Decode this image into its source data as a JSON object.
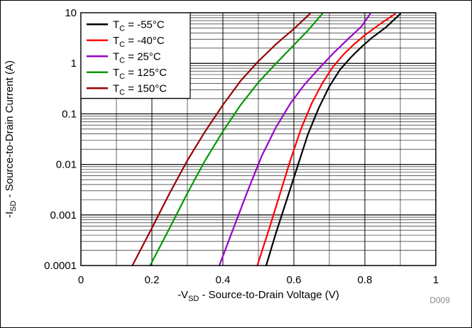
{
  "chart_data": {
    "type": "line",
    "xlabel": {
      "prefix": "-V",
      "sub": "SD",
      "suffix": " - Source-to-Drain Voltage (V)"
    },
    "ylabel": {
      "prefix": "-I",
      "sub": "SD",
      "suffix": " - Source-to-Drain Current (A)"
    },
    "xlim": [
      0,
      1
    ],
    "ylim": [
      0.0001,
      10
    ],
    "yscale": "log",
    "x_ticks": [
      "0",
      "0.2",
      "0.4",
      "0.6",
      "0.8",
      "1"
    ],
    "y_ticks": [
      "0.0001",
      "0.001",
      "0.01",
      "0.1",
      "1",
      "10"
    ],
    "grid": true,
    "legend_position": "top-left",
    "figure_code": "D009",
    "series": [
      {
        "name": "T_C = -55°C",
        "label": {
          "prefix": "T",
          "sub": "C",
          "suffix": " = -55°C"
        },
        "color": "#000000",
        "points": [
          [
            0.522,
            0.0001
          ],
          [
            0.55,
            0.00045
          ],
          [
            0.58,
            0.002
          ],
          [
            0.61,
            0.009
          ],
          [
            0.64,
            0.04
          ],
          [
            0.67,
            0.13
          ],
          [
            0.7,
            0.35
          ],
          [
            0.73,
            0.75
          ],
          [
            0.76,
            1.3
          ],
          [
            0.79,
            2.1
          ],
          [
            0.82,
            3.2
          ],
          [
            0.86,
            5.2
          ],
          [
            0.9,
            9.5
          ]
        ]
      },
      {
        "name": "T_C = -40°C",
        "label": {
          "prefix": "T",
          "sub": "C",
          "suffix": " = -40°C"
        },
        "color": "#ff0000",
        "points": [
          [
            0.497,
            0.0001
          ],
          [
            0.53,
            0.00052
          ],
          [
            0.56,
            0.0025
          ],
          [
            0.59,
            0.012
          ],
          [
            0.62,
            0.05
          ],
          [
            0.65,
            0.16
          ],
          [
            0.68,
            0.4
          ],
          [
            0.71,
            0.85
          ],
          [
            0.74,
            1.5
          ],
          [
            0.77,
            2.4
          ],
          [
            0.8,
            3.6
          ],
          [
            0.84,
            5.8
          ],
          [
            0.885,
            9.5
          ]
        ]
      },
      {
        "name": "T_C = 25°C",
        "label": {
          "prefix": "T",
          "sub": "C",
          "suffix": " = 25°C"
        },
        "color": "#9900cc",
        "points": [
          [
            0.39,
            0.0001
          ],
          [
            0.43,
            0.00055
          ],
          [
            0.47,
            0.003
          ],
          [
            0.51,
            0.015
          ],
          [
            0.55,
            0.055
          ],
          [
            0.59,
            0.16
          ],
          [
            0.63,
            0.38
          ],
          [
            0.67,
            0.78
          ],
          [
            0.71,
            1.55
          ],
          [
            0.75,
            2.9
          ],
          [
            0.79,
            5.3
          ],
          [
            0.815,
            9.5
          ]
        ]
      },
      {
        "name": "T_C = 125°C",
        "label": {
          "prefix": "T",
          "sub": "C",
          "suffix": " = 125°C"
        },
        "color": "#009900",
        "points": [
          [
            0.195,
            0.0001
          ],
          [
            0.25,
            0.00055
          ],
          [
            0.3,
            0.0027
          ],
          [
            0.35,
            0.012
          ],
          [
            0.4,
            0.045
          ],
          [
            0.45,
            0.15
          ],
          [
            0.5,
            0.42
          ],
          [
            0.55,
            1.0
          ],
          [
            0.6,
            2.3
          ],
          [
            0.64,
            4.5
          ],
          [
            0.68,
            9.5
          ]
        ]
      },
      {
        "name": "T_C = 150°C",
        "label": {
          "prefix": "T",
          "sub": "C",
          "suffix": " = 150°C"
        },
        "color": "#990000",
        "points": [
          [
            0.145,
            0.0001
          ],
          [
            0.2,
            0.00055
          ],
          [
            0.25,
            0.0027
          ],
          [
            0.3,
            0.012
          ],
          [
            0.35,
            0.045
          ],
          [
            0.4,
            0.15
          ],
          [
            0.45,
            0.45
          ],
          [
            0.5,
            1.1
          ],
          [
            0.55,
            2.4
          ],
          [
            0.6,
            4.8
          ],
          [
            0.645,
            9.5
          ]
        ]
      }
    ]
  }
}
